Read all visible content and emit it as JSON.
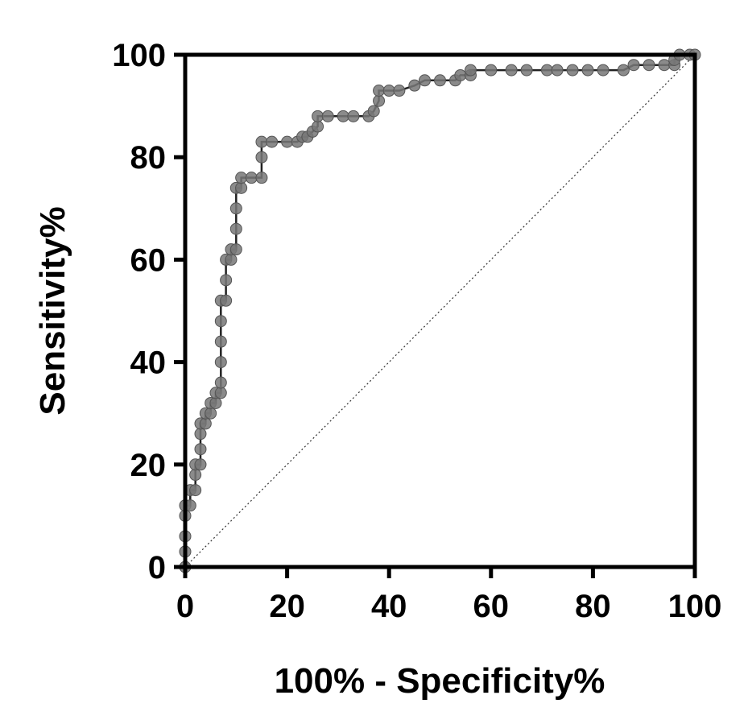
{
  "chart_data": {
    "type": "line",
    "title": "",
    "xlabel": "100% - Specificity%",
    "ylabel": "Sensitivity%",
    "xlim": [
      0,
      100
    ],
    "ylim": [
      0,
      100
    ],
    "x_ticks": [
      "0",
      "20",
      "40",
      "60",
      "80",
      "100"
    ],
    "y_ticks": [
      "0",
      "20",
      "40",
      "60",
      "80",
      "100"
    ],
    "grid": false,
    "box": true,
    "reference_line": {
      "from": [
        0,
        0
      ],
      "to": [
        100,
        100
      ],
      "style": "dotted"
    },
    "series": [
      {
        "points": [
          [
            0,
            0
          ],
          [
            0,
            3
          ],
          [
            0,
            6
          ],
          [
            0,
            10
          ],
          [
            0,
            12
          ],
          [
            1,
            12
          ],
          [
            1,
            15
          ],
          [
            2,
            15
          ],
          [
            2,
            18
          ],
          [
            2,
            20
          ],
          [
            3,
            20
          ],
          [
            3,
            23
          ],
          [
            3,
            26
          ],
          [
            3,
            28
          ],
          [
            4,
            28
          ],
          [
            4,
            30
          ],
          [
            5,
            30
          ],
          [
            5,
            32
          ],
          [
            6,
            32
          ],
          [
            6,
            34
          ],
          [
            7,
            34
          ],
          [
            7,
            36
          ],
          [
            7,
            40
          ],
          [
            7,
            44
          ],
          [
            7,
            48
          ],
          [
            7,
            52
          ],
          [
            8,
            52
          ],
          [
            8,
            56
          ],
          [
            8,
            60
          ],
          [
            9,
            60
          ],
          [
            9,
            62
          ],
          [
            10,
            62
          ],
          [
            10,
            66
          ],
          [
            10,
            70
          ],
          [
            10,
            74
          ],
          [
            11,
            74
          ],
          [
            11,
            76
          ],
          [
            13,
            76
          ],
          [
            15,
            76
          ],
          [
            15,
            80
          ],
          [
            15,
            83
          ],
          [
            17,
            83
          ],
          [
            20,
            83
          ],
          [
            22,
            83
          ],
          [
            23,
            84
          ],
          [
            24,
            84
          ],
          [
            25,
            85
          ],
          [
            26,
            86
          ],
          [
            26,
            88
          ],
          [
            28,
            88
          ],
          [
            31,
            88
          ],
          [
            33,
            88
          ],
          [
            36,
            88
          ],
          [
            37,
            89
          ],
          [
            38,
            91
          ],
          [
            38,
            93
          ],
          [
            40,
            93
          ],
          [
            42,
            93
          ],
          [
            45,
            94
          ],
          [
            47,
            95
          ],
          [
            50,
            95
          ],
          [
            53,
            95
          ],
          [
            54,
            96
          ],
          [
            56,
            96
          ],
          [
            56,
            97
          ],
          [
            60,
            97
          ],
          [
            64,
            97
          ],
          [
            67,
            97
          ],
          [
            71,
            97
          ],
          [
            73,
            97
          ],
          [
            76,
            97
          ],
          [
            79,
            97
          ],
          [
            82,
            97
          ],
          [
            86,
            97
          ],
          [
            88,
            98
          ],
          [
            91,
            98
          ],
          [
            94,
            98
          ],
          [
            96,
            98
          ],
          [
            96,
            99
          ],
          [
            97,
            100
          ],
          [
            99,
            100
          ],
          [
            100,
            100
          ]
        ]
      }
    ]
  }
}
